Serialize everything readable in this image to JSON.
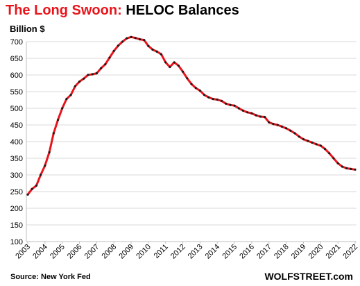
{
  "header": {
    "title_red": "The Long Swoon:",
    "title_black": "HELOC Balances"
  },
  "footer": {
    "source": "Source: New York Fed",
    "brand": "WOLFSTREET.com"
  },
  "colors": {
    "line": "#e8141b",
    "points": "#1a1a1a",
    "grid": "#d9d9d9",
    "axis": "#bfbfbf",
    "title_accent": "#e8141b"
  },
  "chart_data": {
    "type": "line",
    "ylabel": "Billion $",
    "ylim": [
      100,
      700
    ],
    "yticks": [
      100,
      150,
      200,
      250,
      300,
      350,
      400,
      450,
      500,
      550,
      600,
      650,
      700
    ],
    "xlim": [
      2003,
      2022
    ],
    "xticks": [
      "2003",
      "2004",
      "2005",
      "2006",
      "2007",
      "2008",
      "2009",
      "2010",
      "2011",
      "2012",
      "2013",
      "2014",
      "2015",
      "2016",
      "2017",
      "2018",
      "2019",
      "2020",
      "2021",
      "2022"
    ],
    "grid": true,
    "series": [
      {
        "x": [
          2003.0,
          2003.25,
          2003.5,
          2003.75,
          2004.0,
          2004.25,
          2004.5,
          2004.75,
          2005.0,
          2005.25,
          2005.5,
          2005.75,
          2006.0,
          2006.25,
          2006.5,
          2006.75,
          2007.0,
          2007.25,
          2007.5,
          2007.75,
          2008.0,
          2008.25,
          2008.5,
          2008.75,
          2009.0,
          2009.25,
          2009.5,
          2009.75,
          2010.0,
          2010.25,
          2010.5,
          2010.75,
          2011.0,
          2011.25,
          2011.5,
          2011.75,
          2012.0,
          2012.25,
          2012.5,
          2012.75,
          2013.0,
          2013.25,
          2013.5,
          2013.75,
          2014.0,
          2014.25,
          2014.5,
          2014.75,
          2015.0,
          2015.25,
          2015.5,
          2015.75,
          2016.0,
          2016.25,
          2016.5,
          2016.75,
          2017.0,
          2017.25,
          2017.5,
          2017.75,
          2018.0,
          2018.25,
          2018.5,
          2018.75,
          2019.0,
          2019.25,
          2019.5,
          2019.75,
          2020.0,
          2020.25,
          2020.5,
          2020.75,
          2021.0,
          2021.25,
          2021.5,
          2021.75,
          2022.0
        ],
        "y": [
          241,
          258,
          268,
          300,
          328,
          368,
          425,
          465,
          500,
          528,
          540,
          566,
          580,
          589,
          600,
          602,
          605,
          620,
          632,
          652,
          672,
          688,
          700,
          710,
          714,
          711,
          707,
          705,
          687,
          676,
          670,
          662,
          638,
          624,
          638,
          628,
          610,
          590,
          573,
          561,
          553,
          540,
          533,
          528,
          526,
          522,
          514,
          510,
          508,
          500,
          493,
          488,
          485,
          479,
          475,
          474,
          458,
          453,
          450,
          445,
          440,
          433,
          425,
          415,
          407,
          402,
          397,
          392,
          388,
          378,
          365,
          350,
          335,
          325,
          320,
          318,
          316
        ]
      }
    ]
  }
}
